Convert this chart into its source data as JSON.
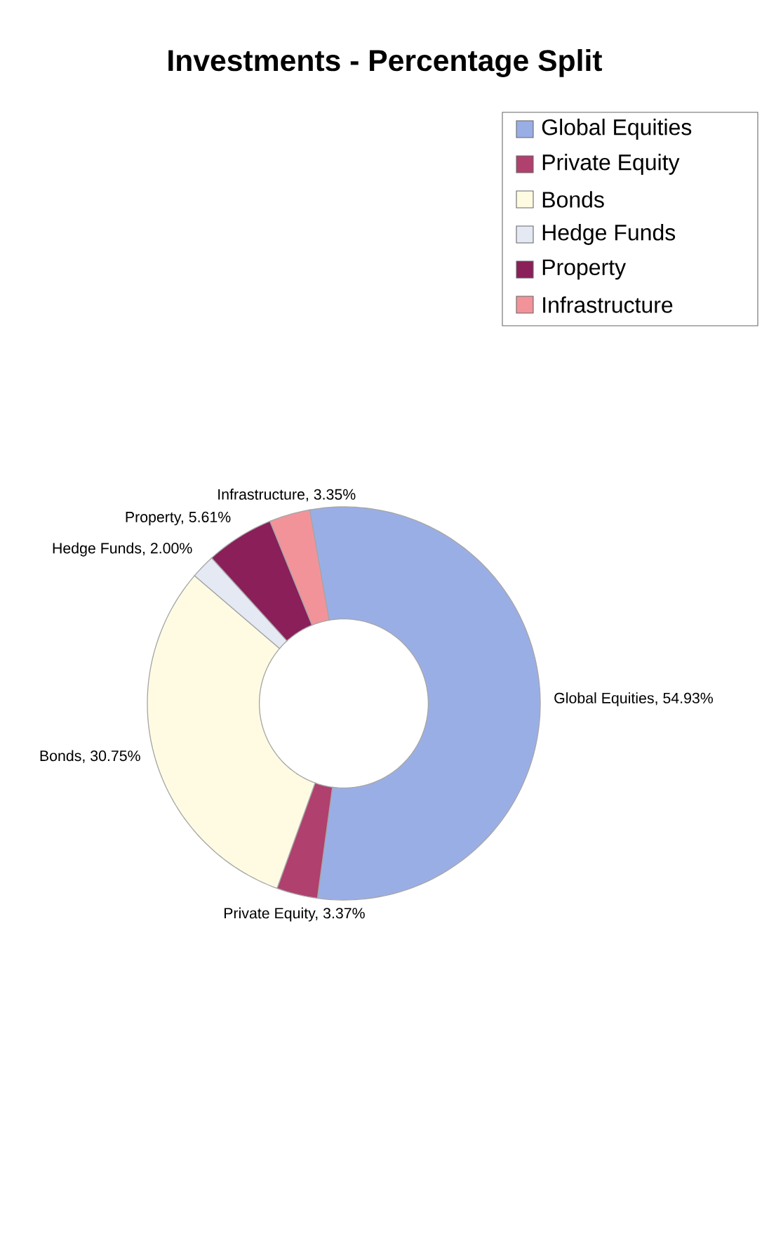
{
  "chart_data": {
    "type": "donut",
    "title": "Investments - Percentage Split",
    "categories": [
      "Global Equities",
      "Private Equity",
      "Bonds",
      "Hedge Funds",
      "Property",
      "Infrastructure"
    ],
    "values": [
      54.93,
      3.37,
      30.75,
      2.0,
      5.61,
      3.35
    ],
    "colors": [
      "#9aaee6",
      "#b0406e",
      "#fffbe3",
      "#e4e9f3",
      "#8a1f5a",
      "#f2939a"
    ],
    "value_labels": [
      "Global Equities, 54.93%",
      "Private Equity, 3.37%",
      "Bonds, 30.75%",
      "Hedge Funds, 2.00%",
      "Property, 5.61%",
      "Infrastructure, 3.35%"
    ],
    "legend": "top right"
  }
}
